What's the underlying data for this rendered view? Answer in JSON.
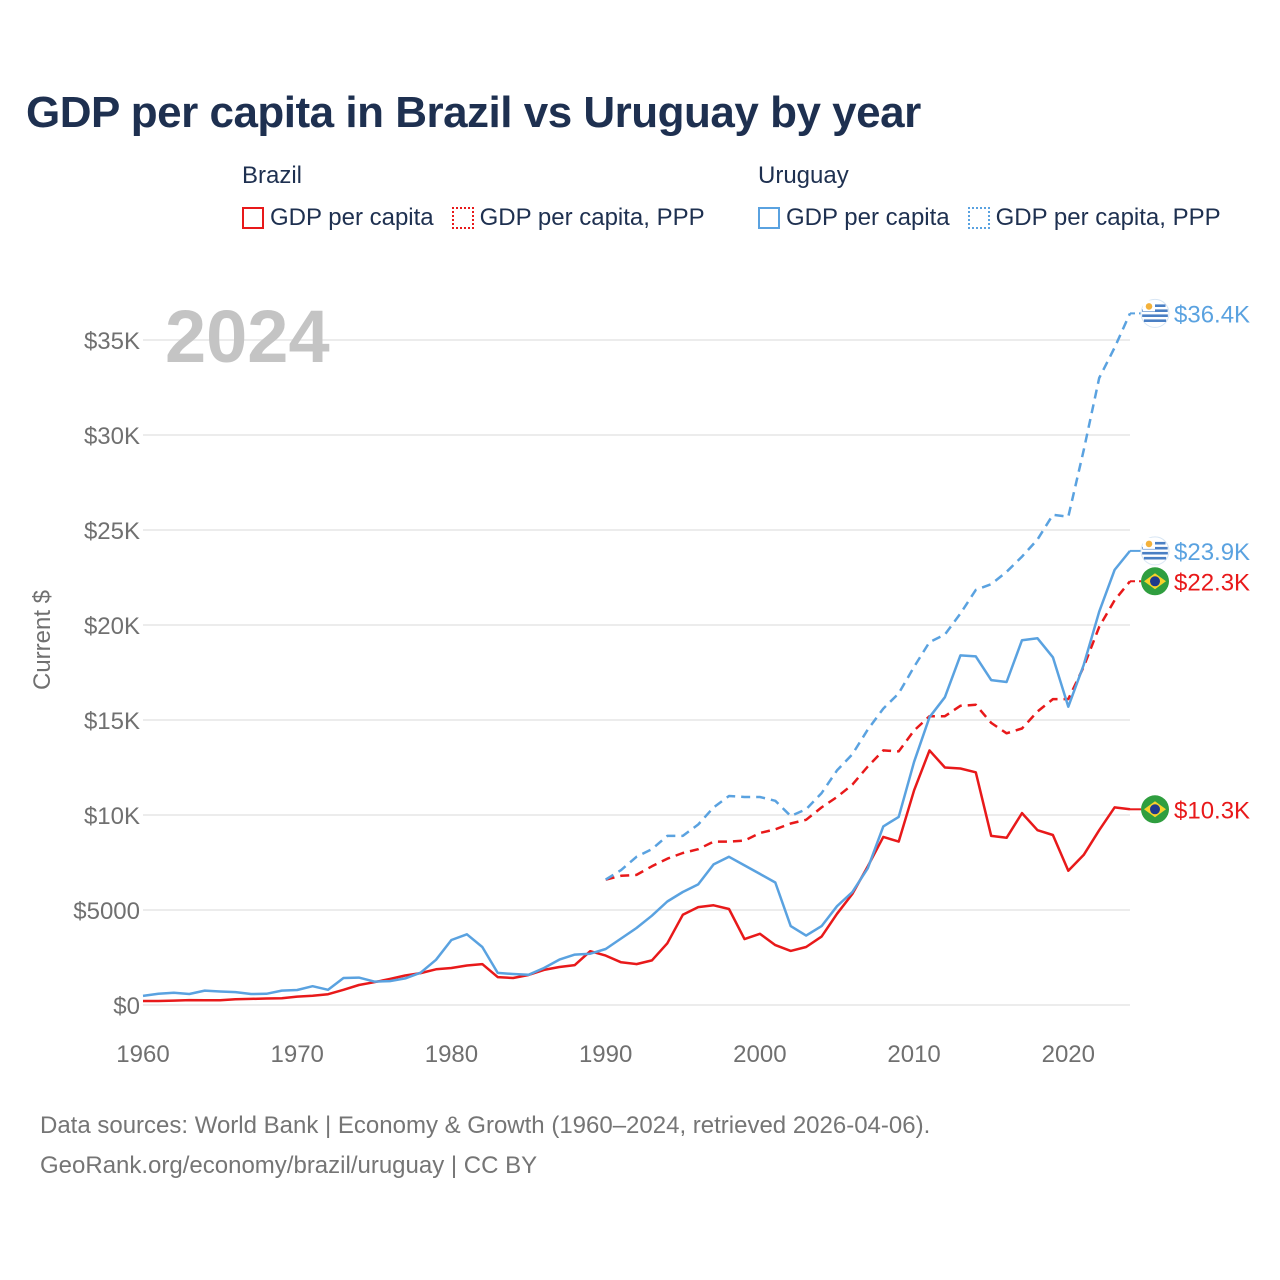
{
  "title": "GDP per capita in Brazil vs Uruguay by year",
  "legend": {
    "brazil": {
      "name": "Brazil",
      "gdp": "GDP per capita",
      "ppp": "GDP per capita, PPP"
    },
    "uruguay": {
      "name": "Uruguay",
      "gdp": "GDP per capita",
      "ppp": "GDP per capita, PPP"
    }
  },
  "colors": {
    "brazil": "#e8191a",
    "uruguay": "#5aa2e0",
    "grid": "#e6e6e6",
    "axis_text": "#707070",
    "year_watermark": "#c4c4c4"
  },
  "footer": {
    "line1": "Data sources: World Bank | Economy & Growth (1960–2024, retrieved 2026-04-06).",
    "line2": "GeoRank.org/economy/brazil/uruguay | CC BY"
  },
  "chart_data": {
    "type": "line",
    "year_label": "2024",
    "ylabel": "Current $",
    "xlim": [
      1960,
      2024
    ],
    "ylim": [
      0,
      37000
    ],
    "x_ticks": [
      1960,
      1970,
      1980,
      1990,
      2000,
      2010,
      2020
    ],
    "y_ticks": [
      {
        "value": 0,
        "label": "$0"
      },
      {
        "value": 5000,
        "label": "$5000"
      },
      {
        "value": 10000,
        "label": "$10K"
      },
      {
        "value": 15000,
        "label": "$15K"
      },
      {
        "value": 20000,
        "label": "$20K"
      },
      {
        "value": 25000,
        "label": "$25K"
      },
      {
        "value": 30000,
        "label": "$30K"
      },
      {
        "value": 35000,
        "label": "$35K"
      }
    ],
    "series": [
      {
        "name": "Brazil GDP per capita",
        "country": "brazil",
        "style": "solid",
        "end_label": "$10.3K",
        "x": [
          1960,
          1961,
          1962,
          1963,
          1964,
          1965,
          1966,
          1967,
          1968,
          1969,
          1970,
          1971,
          1972,
          1973,
          1974,
          1975,
          1976,
          1977,
          1978,
          1979,
          1980,
          1981,
          1982,
          1983,
          1984,
          1985,
          1986,
          1987,
          1988,
          1989,
          1990,
          1991,
          1992,
          1993,
          1994,
          1995,
          1996,
          1997,
          1998,
          1999,
          2000,
          2001,
          2002,
          2003,
          2004,
          2005,
          2006,
          2007,
          2008,
          2009,
          2010,
          2011,
          2012,
          2013,
          2014,
          2015,
          2016,
          2017,
          2018,
          2019,
          2020,
          2021,
          2022,
          2023,
          2024
        ],
        "values": [
          210,
          210,
          230,
          260,
          250,
          250,
          300,
          320,
          340,
          360,
          440,
          490,
          570,
          800,
          1050,
          1200,
          1370,
          1550,
          1680,
          1880,
          1950,
          2080,
          2150,
          1470,
          1420,
          1580,
          1850,
          2000,
          2100,
          2830,
          2600,
          2250,
          2150,
          2350,
          3250,
          4750,
          5150,
          5250,
          5050,
          3470,
          3750,
          3150,
          2850,
          3050,
          3600,
          4800,
          5850,
          7300,
          8850,
          8600,
          11300,
          13400,
          12500,
          12450,
          12250,
          8900,
          8800,
          10100,
          9200,
          8950,
          7070,
          7900,
          9200,
          10400,
          10300
        ]
      },
      {
        "name": "Brazil GDP per capita, PPP",
        "country": "brazil",
        "style": "dashed",
        "end_label": "$22.3K",
        "x": [
          1990,
          1991,
          1992,
          1993,
          1994,
          1995,
          1996,
          1997,
          1998,
          1999,
          2000,
          2001,
          2002,
          2003,
          2004,
          2005,
          2006,
          2007,
          2008,
          2009,
          2010,
          2011,
          2012,
          2013,
          2014,
          2015,
          2016,
          2017,
          2018,
          2019,
          2020,
          2021,
          2022,
          2023,
          2024
        ],
        "values": [
          6600,
          6800,
          6850,
          7300,
          7700,
          8000,
          8200,
          8600,
          8600,
          8650,
          9050,
          9250,
          9550,
          9750,
          10400,
          10950,
          11600,
          12550,
          13400,
          13350,
          14450,
          15200,
          15200,
          15750,
          15800,
          14850,
          14300,
          14550,
          15450,
          16100,
          16100,
          17800,
          19900,
          21300,
          22300
        ]
      },
      {
        "name": "Uruguay GDP per capita",
        "country": "uruguay",
        "style": "solid",
        "end_label": "$23.9K",
        "x": [
          1960,
          1961,
          1962,
          1963,
          1964,
          1965,
          1966,
          1967,
          1968,
          1969,
          1970,
          1971,
          1972,
          1973,
          1974,
          1975,
          1976,
          1977,
          1978,
          1979,
          1980,
          1981,
          1982,
          1983,
          1984,
          1985,
          1986,
          1987,
          1988,
          1989,
          1990,
          1991,
          1992,
          1993,
          1994,
          1995,
          1996,
          1997,
          1998,
          1999,
          2000,
          2001,
          2002,
          2003,
          2004,
          2005,
          2006,
          2007,
          2008,
          2009,
          2010,
          2011,
          2012,
          2013,
          2014,
          2015,
          2016,
          2017,
          2018,
          2019,
          2020,
          2021,
          2022,
          2023,
          2024
        ],
        "values": [
          480,
          590,
          640,
          580,
          760,
          710,
          680,
          580,
          590,
          760,
          790,
          990,
          800,
          1420,
          1440,
          1230,
          1260,
          1400,
          1700,
          2380,
          3420,
          3720,
          3050,
          1690,
          1630,
          1590,
          1950,
          2390,
          2650,
          2700,
          2950,
          3500,
          4050,
          4700,
          5450,
          5950,
          6350,
          7400,
          7800,
          7350,
          6900,
          6450,
          4150,
          3650,
          4150,
          5200,
          5950,
          7200,
          9400,
          9900,
          12800,
          15150,
          16200,
          18400,
          18350,
          17100,
          17000,
          19200,
          19300,
          18300,
          15700,
          17900,
          20700,
          22900,
          23900
        ]
      },
      {
        "name": "Uruguay GDP per capita, PPP",
        "country": "uruguay",
        "style": "dashed",
        "end_label": "$36.4K",
        "x": [
          1990,
          1991,
          1992,
          1993,
          1994,
          1995,
          1996,
          1997,
          1998,
          1999,
          2000,
          2001,
          2002,
          2003,
          2004,
          2005,
          2006,
          2007,
          2008,
          2009,
          2010,
          2011,
          2012,
          2013,
          2014,
          2015,
          2016,
          2017,
          2018,
          2019,
          2020,
          2021,
          2022,
          2023,
          2024
        ],
        "values": [
          6600,
          7100,
          7800,
          8200,
          8900,
          8900,
          9500,
          10400,
          11000,
          10950,
          10950,
          10750,
          9950,
          10300,
          11150,
          12350,
          13200,
          14500,
          15600,
          16400,
          17800,
          19100,
          19500,
          20600,
          21850,
          22150,
          22800,
          23600,
          24500,
          25800,
          25700,
          29200,
          33000,
          34600,
          36400
        ]
      }
    ]
  }
}
